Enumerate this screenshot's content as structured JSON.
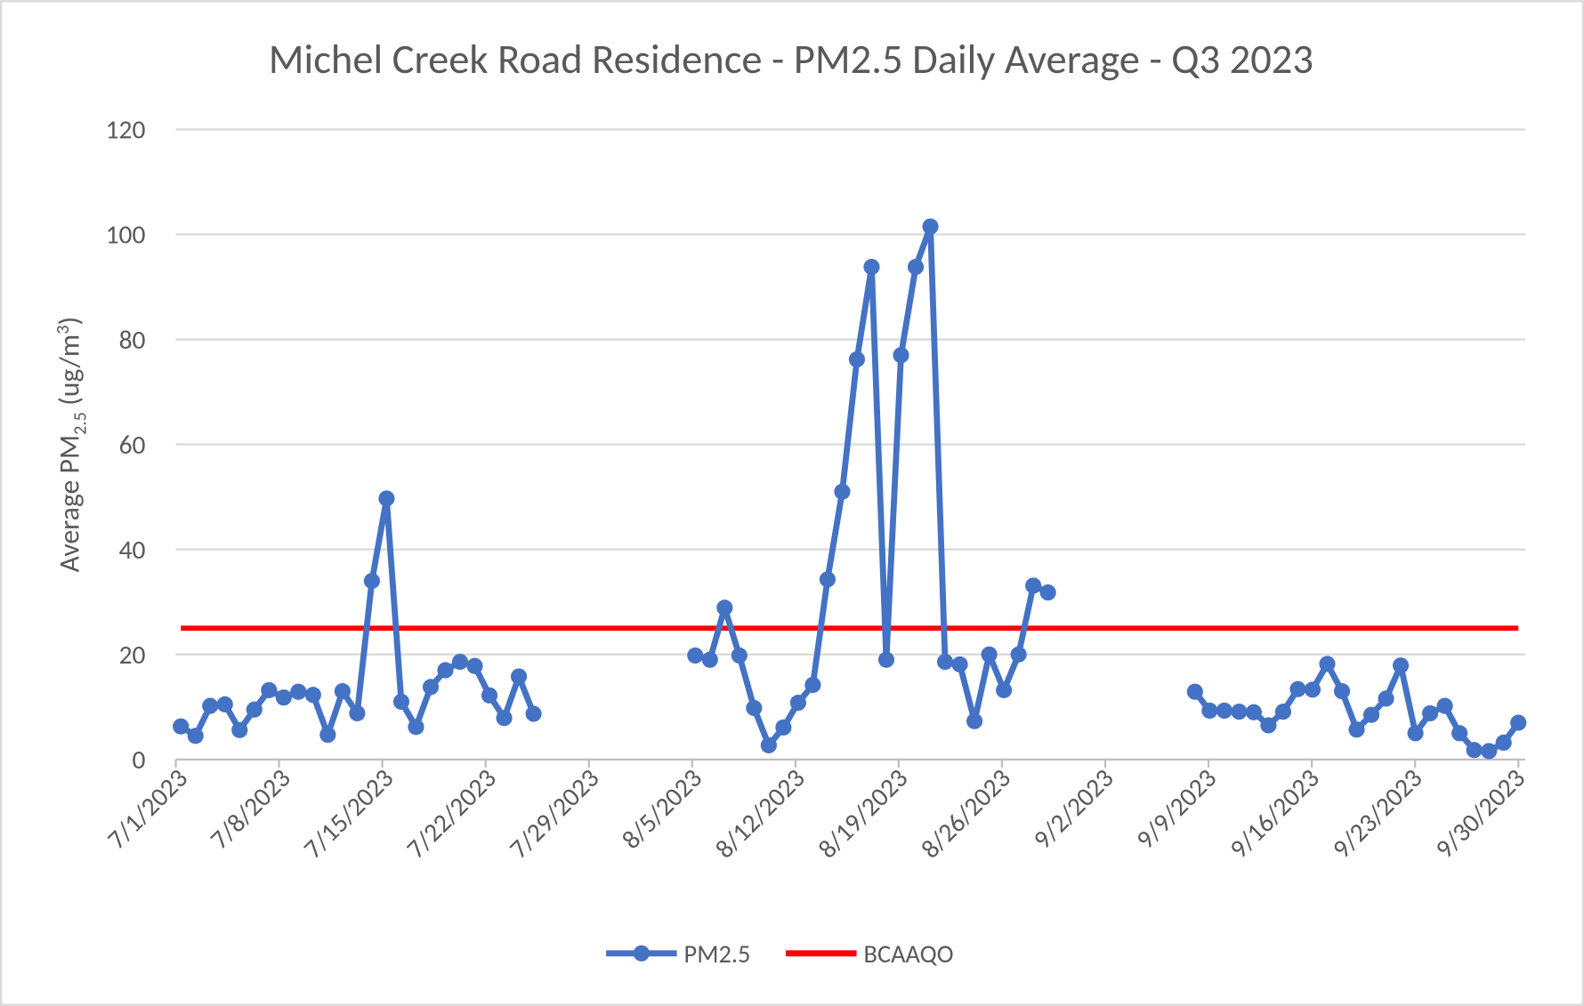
{
  "chart_data": {
    "type": "line",
    "title": "Michel Creek Road Residence - PM2.5 Daily Average - Q3 2023",
    "y_label_parts": [
      "Average PM",
      "2.5",
      " (ug/m",
      "3",
      ")"
    ],
    "categories": [
      "7/1/2023",
      null,
      null,
      null,
      null,
      null,
      null,
      "7/8/2023",
      null,
      null,
      null,
      null,
      null,
      null,
      "7/15/2023",
      null,
      null,
      null,
      null,
      null,
      null,
      "7/22/2023",
      null,
      null,
      null,
      null,
      null,
      null,
      "7/29/2023",
      null,
      null,
      null,
      null,
      null,
      null,
      "8/5/2023",
      null,
      null,
      null,
      null,
      null,
      null,
      "8/12/2023",
      null,
      null,
      null,
      null,
      null,
      null,
      "8/19/2023",
      null,
      null,
      null,
      null,
      null,
      null,
      "8/26/2023",
      null,
      null,
      null,
      null,
      null,
      null,
      "9/2/2023",
      null,
      null,
      null,
      null,
      null,
      null,
      "9/9/2023",
      null,
      null,
      null,
      null,
      null,
      null,
      "9/16/2023",
      null,
      null,
      null,
      null,
      null,
      null,
      "9/23/2023",
      null,
      null,
      null,
      null,
      null,
      null,
      "9/30/2023"
    ],
    "series": [
      {
        "name": "PM2.5",
        "color": "#4472c4",
        "markers": true,
        "values": [
          6.3,
          4.5,
          10.2,
          10.5,
          5.6,
          9.5,
          13.2,
          11.8,
          12.9,
          12.3,
          4.7,
          13.0,
          8.8,
          34.0,
          49.7,
          11.0,
          6.2,
          13.8,
          17.0,
          18.6,
          17.8,
          12.2,
          7.9,
          15.8,
          8.7,
          null,
          null,
          null,
          null,
          null,
          null,
          null,
          null,
          null,
          null,
          19.8,
          19.0,
          28.9,
          19.8,
          9.8,
          2.7,
          6.1,
          10.8,
          14.2,
          34.3,
          51.0,
          76.2,
          93.8,
          19.0,
          77.0,
          93.8,
          101.5,
          18.6,
          18.1,
          7.3,
          20.0,
          13.2,
          20.0,
          33.1,
          31.8,
          null,
          null,
          null,
          null,
          null,
          null,
          null,
          null,
          null,
          12.9,
          9.3,
          9.3,
          9.1,
          9.0,
          6.5,
          9.1,
          13.4,
          13.3,
          18.2,
          13.0,
          5.7,
          8.5,
          11.6,
          17.9,
          5.0,
          8.8,
          10.2,
          5.0,
          1.8,
          1.6,
          3.2,
          7.0
        ]
      },
      {
        "name": "BCAAQO",
        "color": "#ff0000",
        "markers": false,
        "values": [
          25,
          25,
          25,
          25,
          25,
          25,
          25,
          25,
          25,
          25,
          25,
          25,
          25,
          25,
          25,
          25,
          25,
          25,
          25,
          25,
          25,
          25,
          25,
          25,
          25,
          25,
          25,
          25,
          25,
          25,
          25,
          25,
          25,
          25,
          25,
          25,
          25,
          25,
          25,
          25,
          25,
          25,
          25,
          25,
          25,
          25,
          25,
          25,
          25,
          25,
          25,
          25,
          25,
          25,
          25,
          25,
          25,
          25,
          25,
          25,
          25,
          25,
          25,
          25,
          25,
          25,
          25,
          25,
          25,
          25,
          25,
          25,
          25,
          25,
          25,
          25,
          25,
          25,
          25,
          25,
          25,
          25,
          25,
          25,
          25,
          25,
          25,
          25,
          25,
          25,
          25,
          25
        ]
      }
    ],
    "ylim": [
      0,
      120
    ],
    "yticks": [
      0,
      20,
      40,
      60,
      80,
      100,
      120
    ],
    "grid": true,
    "legend": "bottom"
  }
}
